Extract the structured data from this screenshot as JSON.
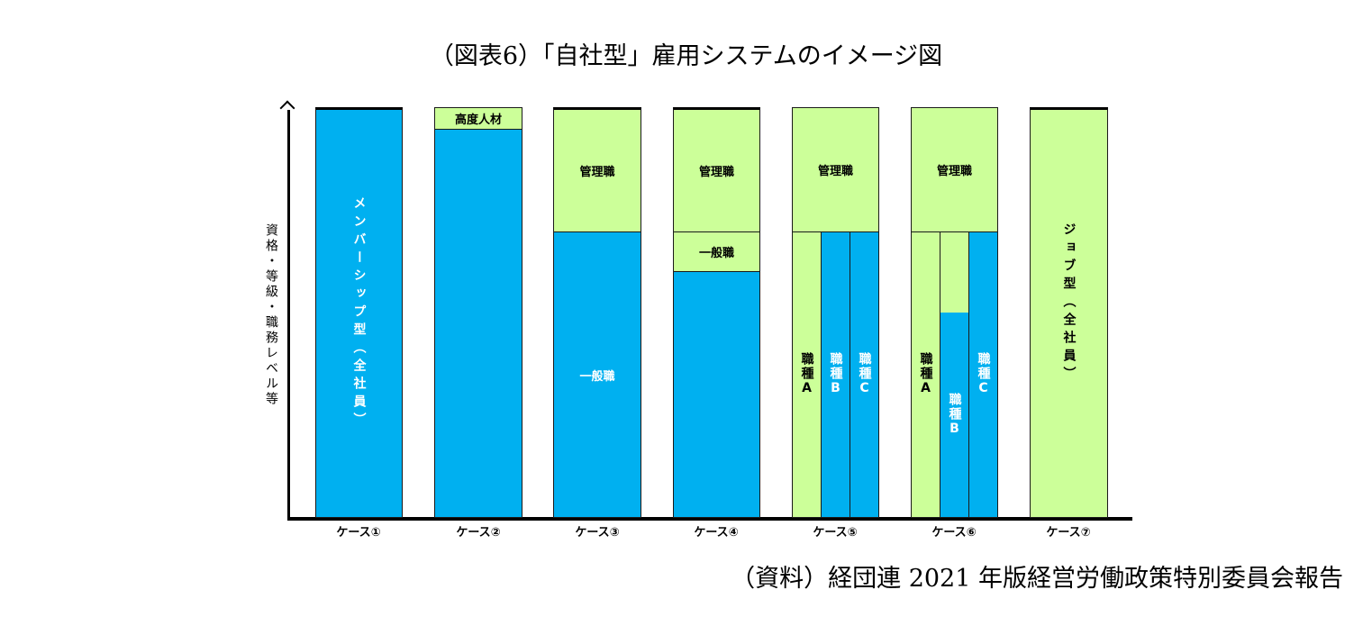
{
  "title": "（図表6）「自社型」雇用システムのイメージ図",
  "y_axis_label": "資格・等級・職務レベル等",
  "colors": {
    "blue": "#00B0F0",
    "green": "#CCFF99"
  },
  "cases": [
    {
      "label": "ケース①",
      "segments": [
        "メンバーシップ型（全社員）"
      ]
    },
    {
      "label": "ケース②",
      "segments": [
        "高度人材",
        ""
      ]
    },
    {
      "label": "ケース③",
      "segments": [
        "管理職",
        "一般職"
      ]
    },
    {
      "label": "ケース④",
      "segments": [
        "管理職",
        "一般職",
        ""
      ]
    },
    {
      "label": "ケース⑤",
      "segments": [
        "管理職",
        "職種A",
        "職種B",
        "職種C"
      ]
    },
    {
      "label": "ケース⑥",
      "segments": [
        "管理職",
        "職種A",
        "職種B",
        "職種C"
      ]
    },
    {
      "label": "ケース⑦",
      "segments": [
        "ジョブ型（全社員）"
      ]
    }
  ],
  "source": "（資料）経団連 2021 年版経営労働政策特別委員会報告"
}
